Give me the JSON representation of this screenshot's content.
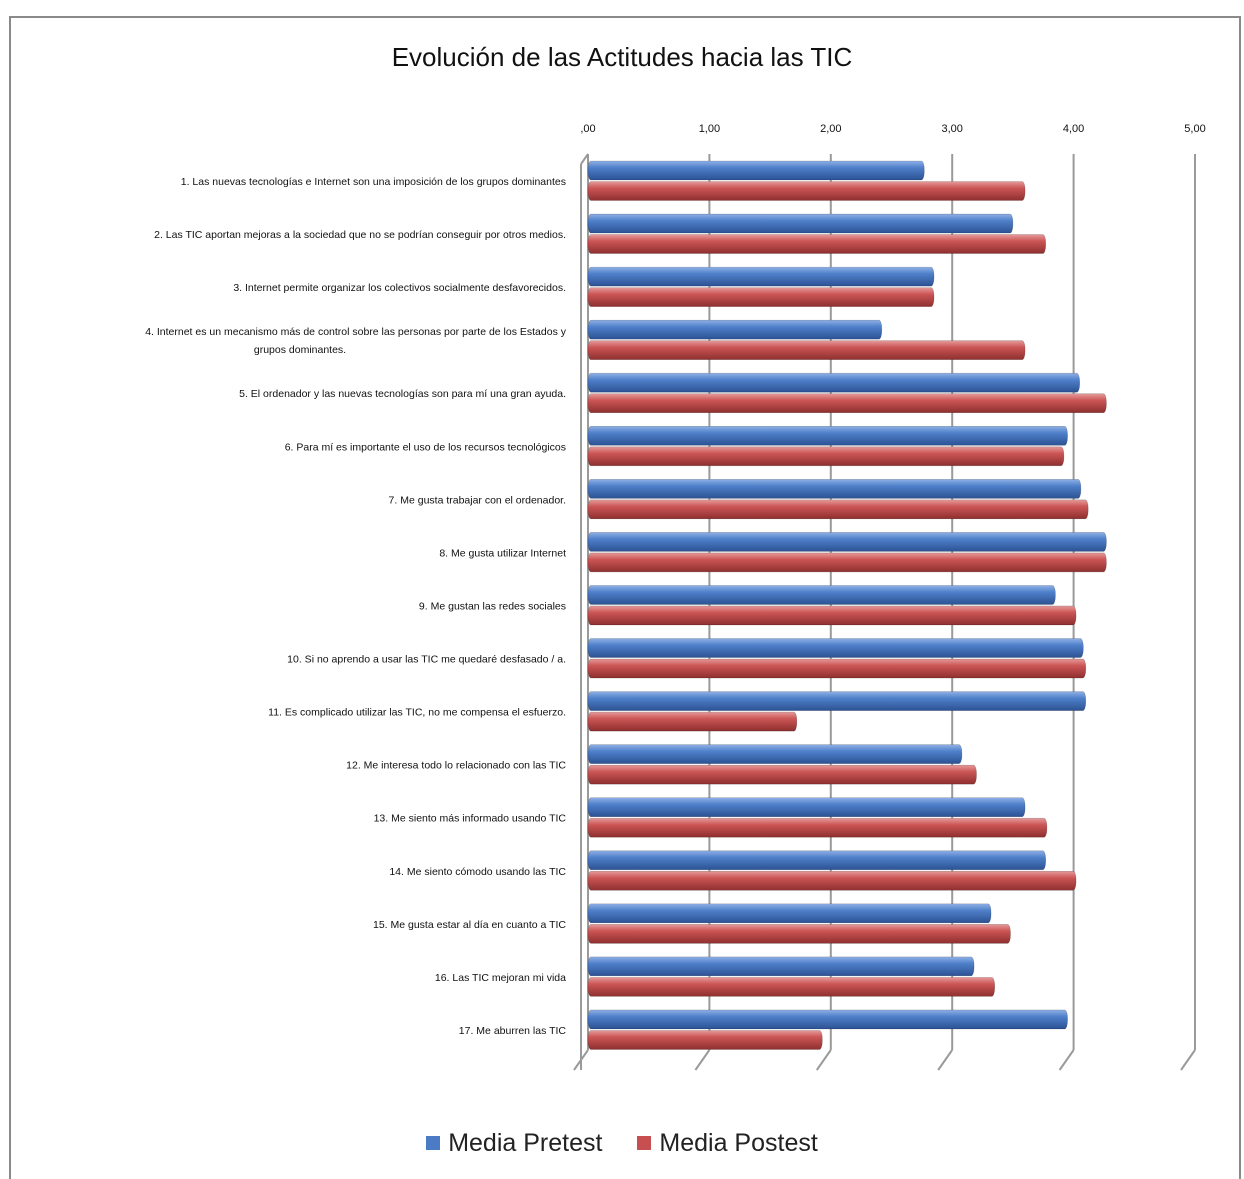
{
  "chart_data": {
    "type": "bar",
    "orientation": "horizontal",
    "title": "Evolución de las Actitudes hacia las TIC",
    "xlim": [
      0,
      5
    ],
    "x_ticks": [
      ",00",
      "1,00",
      "2,00",
      "3,00",
      "4,00",
      "5,00"
    ],
    "x_tick_values": [
      0,
      1,
      2,
      3,
      4,
      5
    ],
    "grid": true,
    "legend_position": "bottom",
    "categories": [
      "1. Las nuevas tecnologías  e Internet son una imposición  de los grupos dominantes",
      "2. Las TIC aportan mejoras a la sociedad  que no se podrían conseguir por otros medios.",
      "3. Internet permite organizar los colectivos  socialmente  desfavorecidos.",
      "4. Internet es un mecanismo  más de control sobre las personas por parte de los Estados  y grupos dominantes.",
      "5. El ordenador y las nuevas tecnologías  son para mí una gran ayuda.",
      "6. Para mí es importante  el uso de los recursos tecnológicos",
      "7. Me gusta trabajar con el ordenador.",
      "8. Me gusta utilizar  Internet",
      "9. Me gustan las redes sociales",
      "10. Si no aprendo a usar las TIC me quedaré desfasado  / a.",
      "11. Es complicado  utilizar  las TIC, no me compensa  el esfuerzo.",
      "12. Me interesa  todo lo relacionado  con las TIC",
      "13. Me siento más informado  usando TIC",
      "14. Me siento cómodo  usando  las TIC",
      "15. Me gusta estar al día en cuanto a TIC",
      "16. Las TIC mejoran mi vida",
      "17. Me aburren las TIC"
    ],
    "series": [
      {
        "name": "Media Pretest",
        "color": "#4a7bc4",
        "values": [
          2.77,
          3.5,
          2.85,
          2.42,
          4.05,
          3.95,
          4.06,
          4.27,
          3.85,
          4.08,
          4.1,
          3.08,
          3.6,
          3.77,
          3.32,
          3.18,
          3.95
        ]
      },
      {
        "name": "Media Postest",
        "color": "#c84f4f",
        "values": [
          3.6,
          3.77,
          2.85,
          3.6,
          4.27,
          3.92,
          4.12,
          4.27,
          4.02,
          4.1,
          1.72,
          3.2,
          3.78,
          4.02,
          3.48,
          3.35,
          1.93
        ]
      }
    ]
  }
}
